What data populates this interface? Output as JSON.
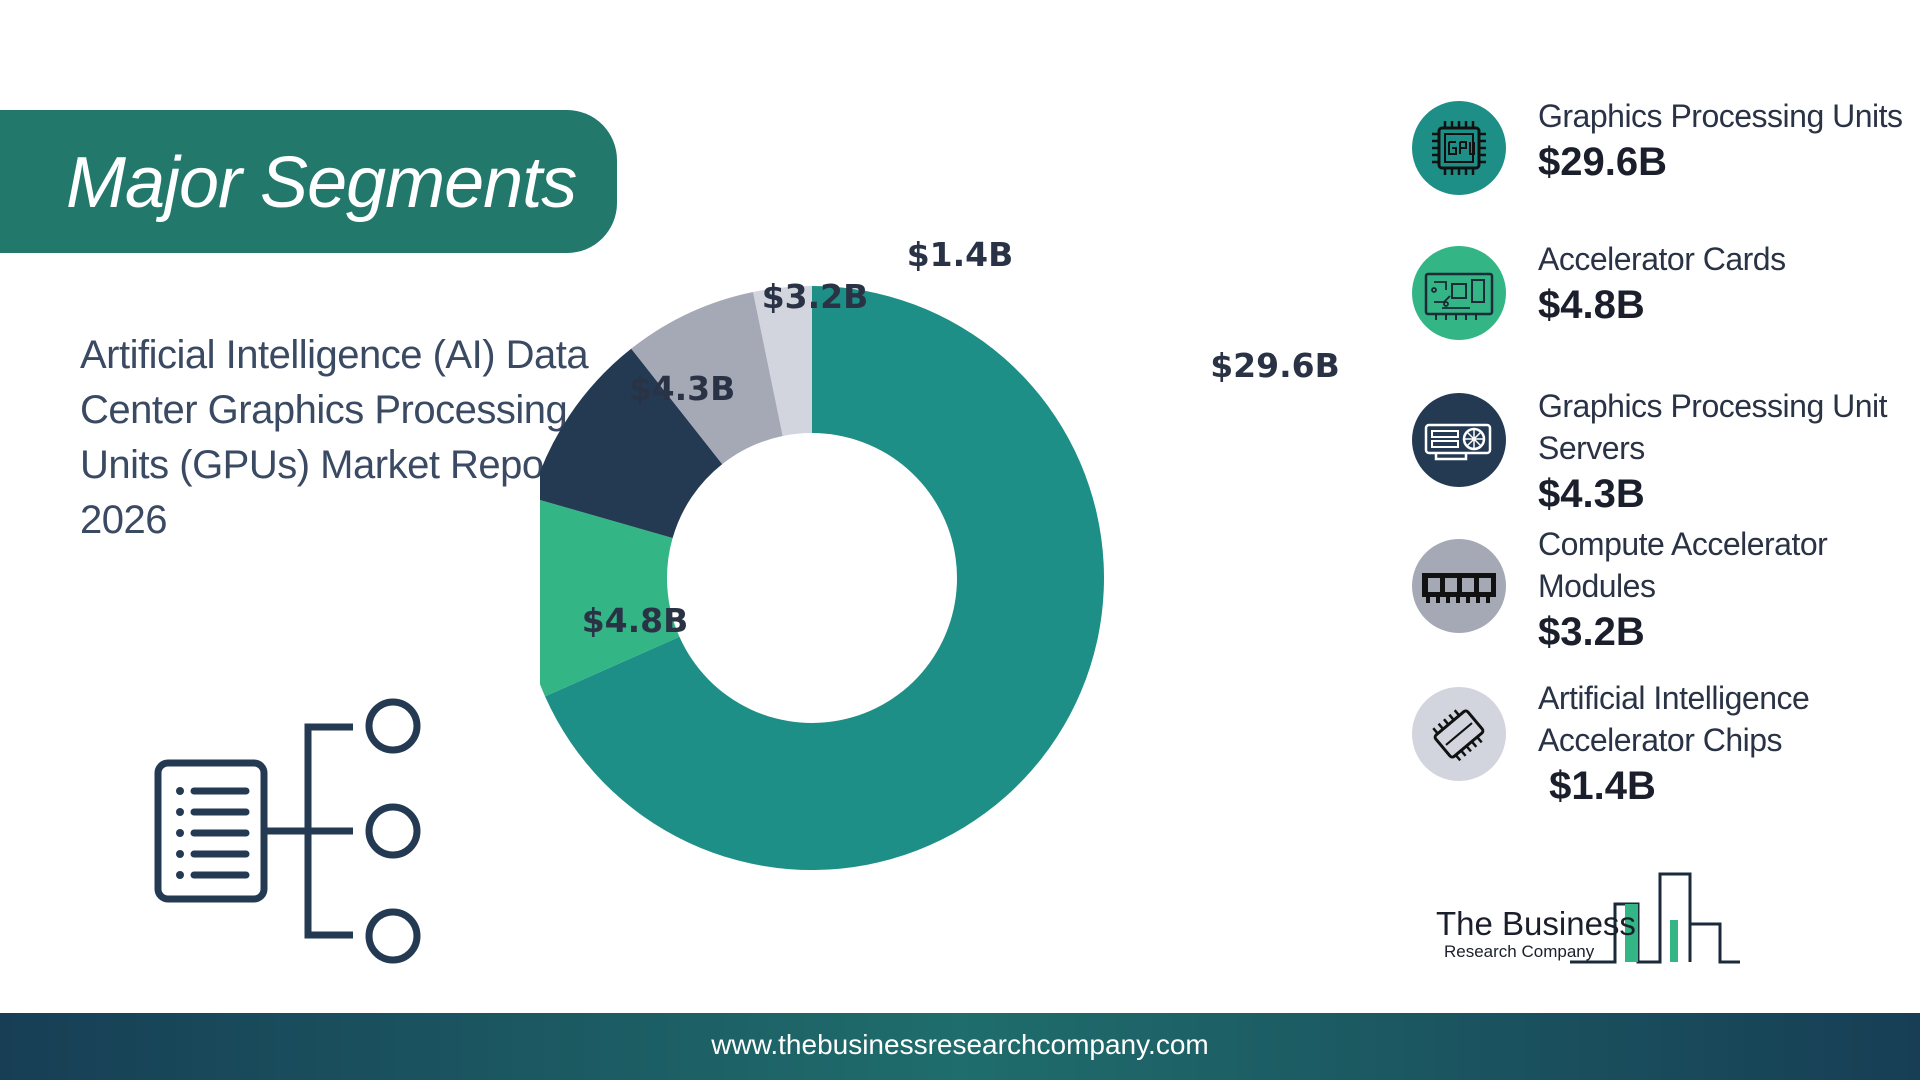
{
  "banner": {
    "title": "Major Segments"
  },
  "report_title": [
    "Artificial Intelligence (AI) Data",
    "Center Graphics Processing",
    "Units (GPUs)  Market Report",
    "2026"
  ],
  "chart_data": {
    "type": "donut",
    "title": "",
    "unit": "$B",
    "categories": [
      "Graphics Processing Units",
      "Accelerator Cards",
      "Graphics Processing Unit Servers",
      "Compute Accelerator Modules",
      "Artificial Intelligence Accelerator Chips"
    ],
    "values": [
      29.6,
      4.8,
      4.3,
      3.2,
      1.4
    ],
    "labels": [
      "$29.6B",
      "$4.8B",
      "$4.3B",
      "$3.2B",
      "$1.4B"
    ],
    "colors": [
      "#1d8f86",
      "#33b585",
      "#243a52",
      "#a4a9b5",
      "#d2d4de"
    ]
  },
  "segments": [
    {
      "name": "Graphics Processing Units",
      "value": "$29.6B",
      "icon": "gpu-chip-icon",
      "color": "#1d8f86"
    },
    {
      "name": "Accelerator Cards",
      "value": "$4.8B",
      "icon": "circuit-board-icon",
      "color": "#33b585"
    },
    {
      "name": "Graphics Processing Unit Servers",
      "value": "$4.3B",
      "icon": "graphics-card-icon",
      "color": "#243a52"
    },
    {
      "name": "Compute Accelerator Modules",
      "value": "$3.2B",
      "icon": "memory-module-icon",
      "color": "#a4a9b5"
    },
    {
      "name": "Artificial Intelligence Accelerator Chips",
      "value": " $1.4B",
      "icon": "processor-chip-icon",
      "color": "#d2d4de"
    }
  ],
  "logo": {
    "line1": "The Business",
    "line2": "Research Company"
  },
  "footer": {
    "url": "www.thebusinessresearchcompany.com"
  }
}
